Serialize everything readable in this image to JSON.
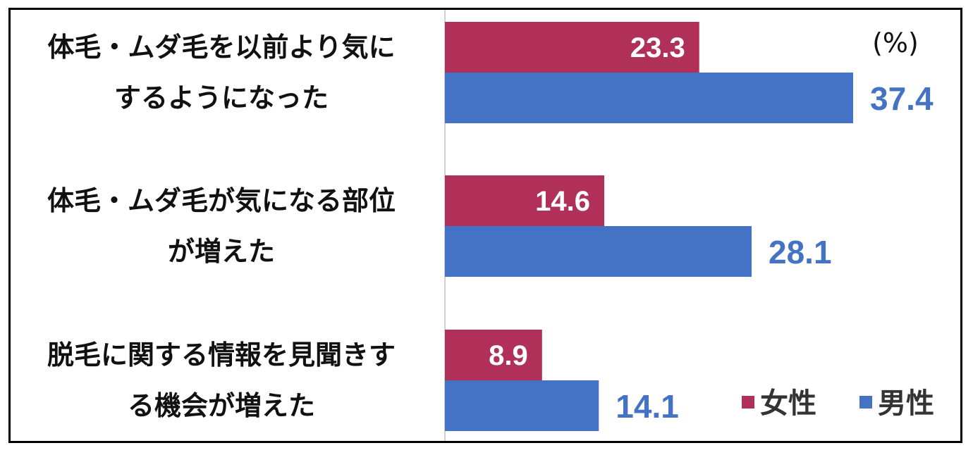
{
  "chart_data": {
    "type": "bar",
    "orientation": "horizontal",
    "unit_label": "(%)",
    "categories": [
      [
        "体毛・ムダ毛を以前より気に",
        "するようになった"
      ],
      [
        "体毛・ムダ毛が気になる部位",
        "が増えた"
      ],
      [
        "脱毛に関する情報を見聞きす",
        "る機会が増えた"
      ]
    ],
    "series": [
      {
        "name": "女性",
        "color": "#b0305a",
        "values": [
          23.3,
          14.6,
          8.9
        ]
      },
      {
        "name": "男性",
        "color": "#4472c4",
        "values": [
          37.4,
          28.1,
          14.1
        ]
      }
    ],
    "xlim": [
      0,
      40
    ],
    "grid": false,
    "legend_position": "bottom-right"
  }
}
